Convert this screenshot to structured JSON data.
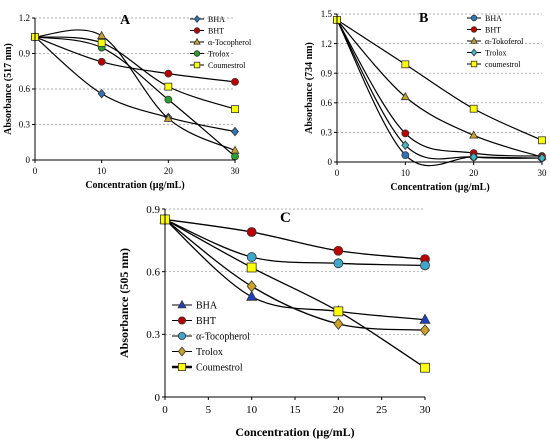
{
  "chart_data": [
    {
      "panel": "A",
      "type": "line",
      "title": "A",
      "xlabel": "Concentration (µg/mL)",
      "ylabel": "Absorbance (517 nm)",
      "x": [
        0,
        10,
        20,
        30
      ],
      "xlim": [
        0,
        30
      ],
      "ylim": [
        0,
        1.2
      ],
      "xticks": [
        "0",
        "10",
        "20",
        "30"
      ],
      "yticks": [
        "0",
        "0.3",
        "0.6",
        "0.9",
        "1.2"
      ],
      "grid": "horizontal dashed",
      "legend_position": "top-right",
      "series": [
        {
          "name": "BHA",
          "values": [
            1.04,
            0.56,
            0.36,
            0.24
          ],
          "color": "#2e75b6",
          "marker": "diamond"
        },
        {
          "name": "BHT",
          "values": [
            1.04,
            0.83,
            0.73,
            0.66
          ],
          "color": "#c00000",
          "marker": "circle"
        },
        {
          "name": "α-Tocopherol",
          "values": [
            1.04,
            1.05,
            0.35,
            0.08
          ],
          "color": "#c9a227",
          "marker": "triangle"
        },
        {
          "name": "Trolox",
          "values": [
            1.04,
            0.95,
            0.51,
            0.03
          ],
          "color": "#2ca02c",
          "marker": "circle"
        },
        {
          "name": "Coumestrol",
          "values": [
            1.04,
            0.99,
            0.62,
            0.43
          ],
          "color": "#ffff00",
          "marker": "square"
        }
      ]
    },
    {
      "panel": "B",
      "type": "line",
      "title": "B",
      "xlabel": "Concentration (µg/mL)",
      "ylabel": "Absorbance (734 nm)",
      "x": [
        0,
        10,
        20,
        30
      ],
      "xlim": [
        0,
        30
      ],
      "ylim": [
        0,
        1.5
      ],
      "xticks": [
        "0",
        "10",
        "20",
        "30"
      ],
      "yticks": [
        "0",
        "0.3",
        "0.6",
        "0.9",
        "1.2",
        "1.5"
      ],
      "grid": "horizontal dashed",
      "legend_position": "top-right",
      "series": [
        {
          "name": "BHA",
          "values": [
            1.44,
            0.07,
            0.05,
            0.04
          ],
          "color": "#2e75b6",
          "marker": "circle"
        },
        {
          "name": "BHT",
          "values": [
            1.44,
            0.29,
            0.09,
            0.06
          ],
          "color": "#c00000",
          "marker": "circle"
        },
        {
          "name": "α-Tokoferol",
          "values": [
            1.44,
            0.66,
            0.27,
            0.05
          ],
          "color": "#c9a227",
          "marker": "triangle"
        },
        {
          "name": "Trolox",
          "values": [
            1.44,
            0.17,
            0.05,
            0.04
          ],
          "color": "#3fb7c9",
          "marker": "diamond"
        },
        {
          "name": "coumestrol",
          "values": [
            1.44,
            0.99,
            0.54,
            0.22
          ],
          "color": "#ffff00",
          "marker": "square"
        }
      ]
    },
    {
      "panel": "C",
      "type": "line",
      "title": "C",
      "xlabel": "Concentration (µg/mL)",
      "ylabel": "Absorbance (505 nm)",
      "x": [
        0,
        10,
        20,
        30
      ],
      "xlim": [
        0,
        30
      ],
      "ylim": [
        0,
        0.9
      ],
      "xticks": [
        "0",
        "5",
        "10",
        "15",
        "20",
        "25",
        "30"
      ],
      "yticks": [
        "0",
        "0.3",
        "0.6",
        "0.9"
      ],
      "grid": "horizontal dashed",
      "legend_position": "bottom-left",
      "series": [
        {
          "name": "BHA",
          "values": [
            0.85,
            0.48,
            0.41,
            0.37
          ],
          "color": "#1f3fbf",
          "marker": "triangle"
        },
        {
          "name": "BHT",
          "values": [
            0.85,
            0.79,
            0.7,
            0.66
          ],
          "color": "#c00000",
          "marker": "circle"
        },
        {
          "name": "α-Tocopherol",
          "values": [
            0.85,
            0.67,
            0.64,
            0.63
          ],
          "color": "#3fa7c9",
          "marker": "circle"
        },
        {
          "name": "Trolox",
          "values": [
            0.85,
            0.53,
            0.35,
            0.32
          ],
          "color": "#c9a227",
          "marker": "diamond"
        },
        {
          "name": "Coumestrol",
          "values": [
            0.85,
            0.62,
            0.41,
            0.14
          ],
          "color": "#ffff00",
          "marker": "square"
        }
      ]
    }
  ]
}
